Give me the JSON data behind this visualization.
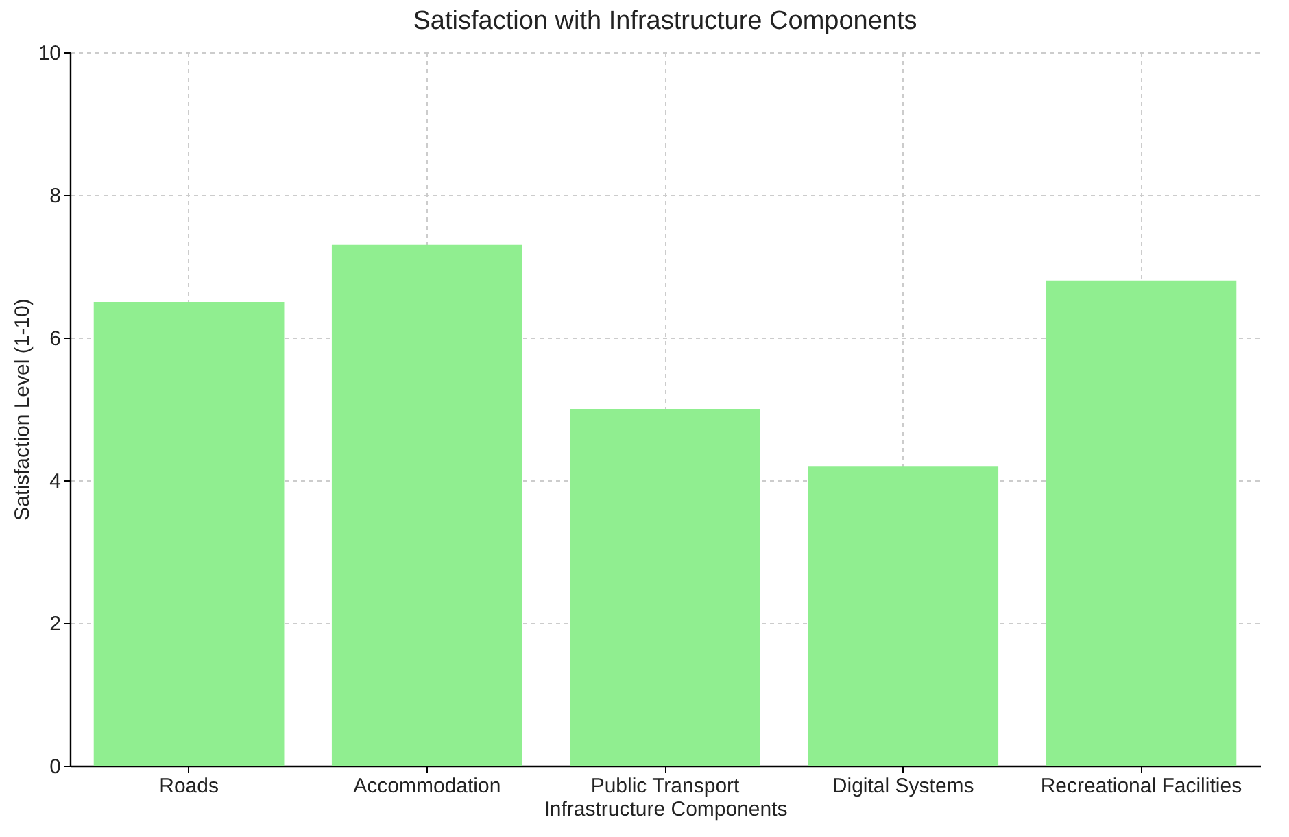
{
  "chart_data": {
    "type": "bar",
    "title": "Satisfaction with Infrastructure Components",
    "xlabel": "Infrastructure Components",
    "ylabel": "Satisfaction Level (1-10)",
    "categories": [
      "Roads",
      "Accommodation",
      "Public Transport",
      "Digital Systems",
      "Recreational Facilities"
    ],
    "values": [
      6.5,
      7.3,
      5.0,
      4.2,
      6.8
    ],
    "color": "#90ee90",
    "ylim": [
      0,
      10
    ],
    "yticks": [
      0,
      2,
      4,
      6,
      8,
      10
    ],
    "grid": true
  }
}
